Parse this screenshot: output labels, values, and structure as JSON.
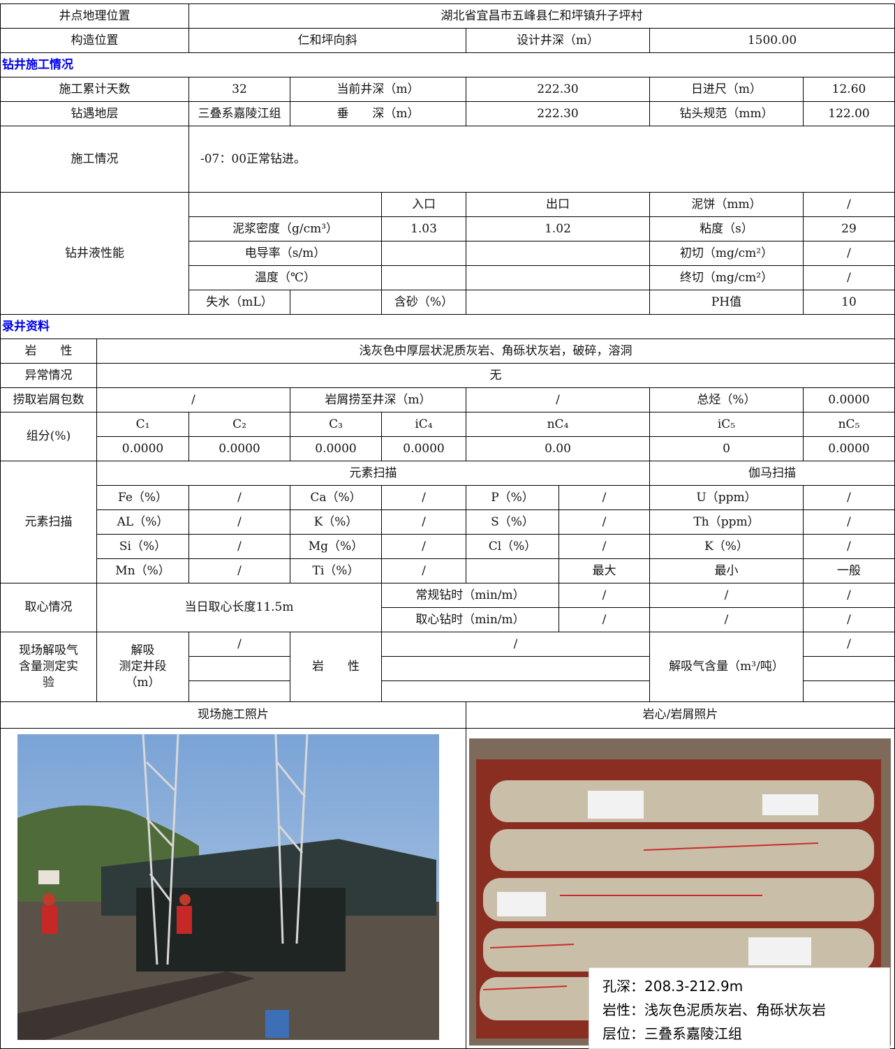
{
  "sections": [
    "钻井施工情况",
    "录井资料"
  ],
  "table": {
    "rows": [
      [
        "井点地理位置",
        "湖北省宜昌市五峰县仁和坪镇升子坪村"
      ],
      [
        "构造位置",
        "仁和坪向斜",
        "设计井深（m）",
        "1500.00"
      ],
      [
        "施工累计天数",
        "32",
        "当前井深（m）",
        "222.30",
        "日进尺（m）",
        "12.60"
      ],
      [
        "钻遇地层",
        "三叠系嘉陵江组",
        "垂　　深（m）",
        "222.30",
        "钻头规范（mm）",
        "122.00"
      ],
      [
        "施工情况",
        "-07：00正常钻进。"
      ],
      [
        "钻井液性能",
        "入口",
        "出口",
        "泥饼（mm）",
        "/"
      ],
      [
        "泥浆密度（g/cm³）",
        "1.03",
        "1.02",
        "粘度（s）",
        "29"
      ],
      [
        "电导率（s/m）",
        "初切（mg/cm²）",
        "/"
      ],
      [
        "温度（℃）",
        "终切（mg/cm²）",
        "/"
      ],
      [
        "失水（mL）",
        "含砂（%）",
        "PH值",
        "10"
      ],
      [
        "岩　　性",
        "浅灰色中厚层状泥质灰岩、角砾状灰岩，破碎，溶洞"
      ],
      [
        "异常情况",
        "无"
      ],
      [
        "捞取岩屑包数",
        "/",
        "岩屑捞至井深（m）",
        "/",
        "总烃（%）",
        "0.0000"
      ],
      [
        "组分(%)",
        "C₁",
        "C₂",
        "C₃",
        "iC₄",
        "nC₄",
        "iC₅",
        "nC₅"
      ],
      [
        "0.0000",
        "0.0000",
        "0.0000",
        "0.0000",
        "0.00",
        "0",
        "0.0000"
      ],
      [
        "元素扫描",
        "元素扫描",
        "伽马扫描"
      ],
      [
        "Fe（%）",
        "/",
        "Ca（%）",
        "/",
        "P（%）",
        "/",
        "U（ppm）",
        "/"
      ],
      [
        "AL（%）",
        "/",
        "K（%）",
        "/",
        "S（%）",
        "/",
        "Th（ppm）",
        "/"
      ],
      [
        "Si（%）",
        "/",
        "Mg（%）",
        "/",
        "Cl（%）",
        "/",
        "K（%）",
        "/"
      ],
      [
        "Mn（%）",
        "/",
        "Ti（%）",
        "/",
        "最大",
        "最小",
        "一般"
      ],
      [
        "取心情况",
        "当日取心长度11.5m",
        "常规钻时（min/m）",
        "/",
        "/",
        "/"
      ],
      [
        "取心钻时（min/m）",
        "/",
        "/",
        "/"
      ],
      [
        "现场解吸气\n含量测定实\n验",
        "解吸\n测定井段\n（m）",
        "/",
        "岩　　性",
        "/",
        "解吸气含量（m³/吨）",
        "/"
      ],
      [
        "现场施工照片",
        "岩心/岩屑照片"
      ]
    ]
  },
  "photo_caption": [
    "孔深：208.3-212.9m",
    "岩性：浅灰色泥质灰岩、角砾状灰岩",
    "层位：三叠系嘉陵江组"
  ]
}
